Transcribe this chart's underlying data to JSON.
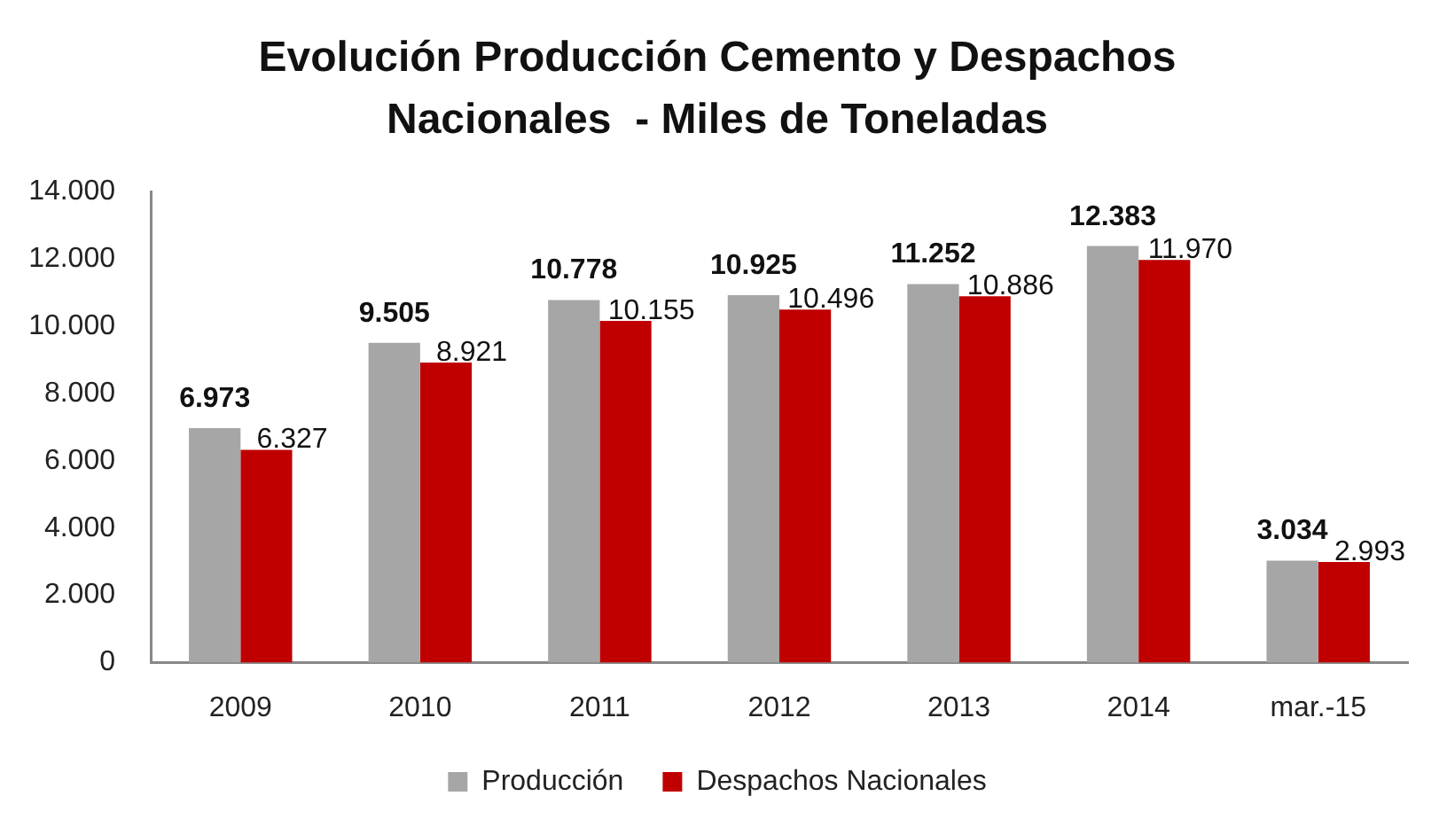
{
  "chart_data": {
    "type": "bar",
    "title": "Evolución Producción Cemento y Despachos\nNacionales  - Miles de Toneladas",
    "categories": [
      "2009",
      "2010",
      "2011",
      "2012",
      "2013",
      "2014",
      "mar.-15"
    ],
    "series": [
      {
        "name": "Producción",
        "color": "#a6a6a6",
        "values": [
          6973,
          9505,
          10778,
          10925,
          11252,
          12383,
          3034
        ],
        "value_labels": [
          "6.973",
          "9.505",
          "10.778",
          "10.925",
          "11.252",
          "12.383",
          "3.034"
        ]
      },
      {
        "name": "Despachos Nacionales",
        "color": "#c00000",
        "values": [
          6327,
          8921,
          10155,
          10496,
          10886,
          11970,
          2993
        ],
        "value_labels": [
          "6.327",
          "8.921",
          "10.155",
          "10.496",
          "10.886",
          "11.970",
          "2.993"
        ]
      }
    ],
    "ylim": [
      0,
      14000
    ],
    "yticks": [
      0,
      {
        "value": 2000,
        "label": "2.000"
      },
      {
        "value": 4000,
        "label": "4.000"
      },
      {
        "value": 6000,
        "label": "6.000"
      },
      {
        "value": 8000,
        "label": "8.000"
      },
      {
        "value": 10000,
        "label": "10.000"
      },
      {
        "value": 12000,
        "label": "12.000"
      },
      {
        "value": 14000,
        "label": "14.000"
      }
    ],
    "grid": false,
    "legend": "bottom"
  }
}
